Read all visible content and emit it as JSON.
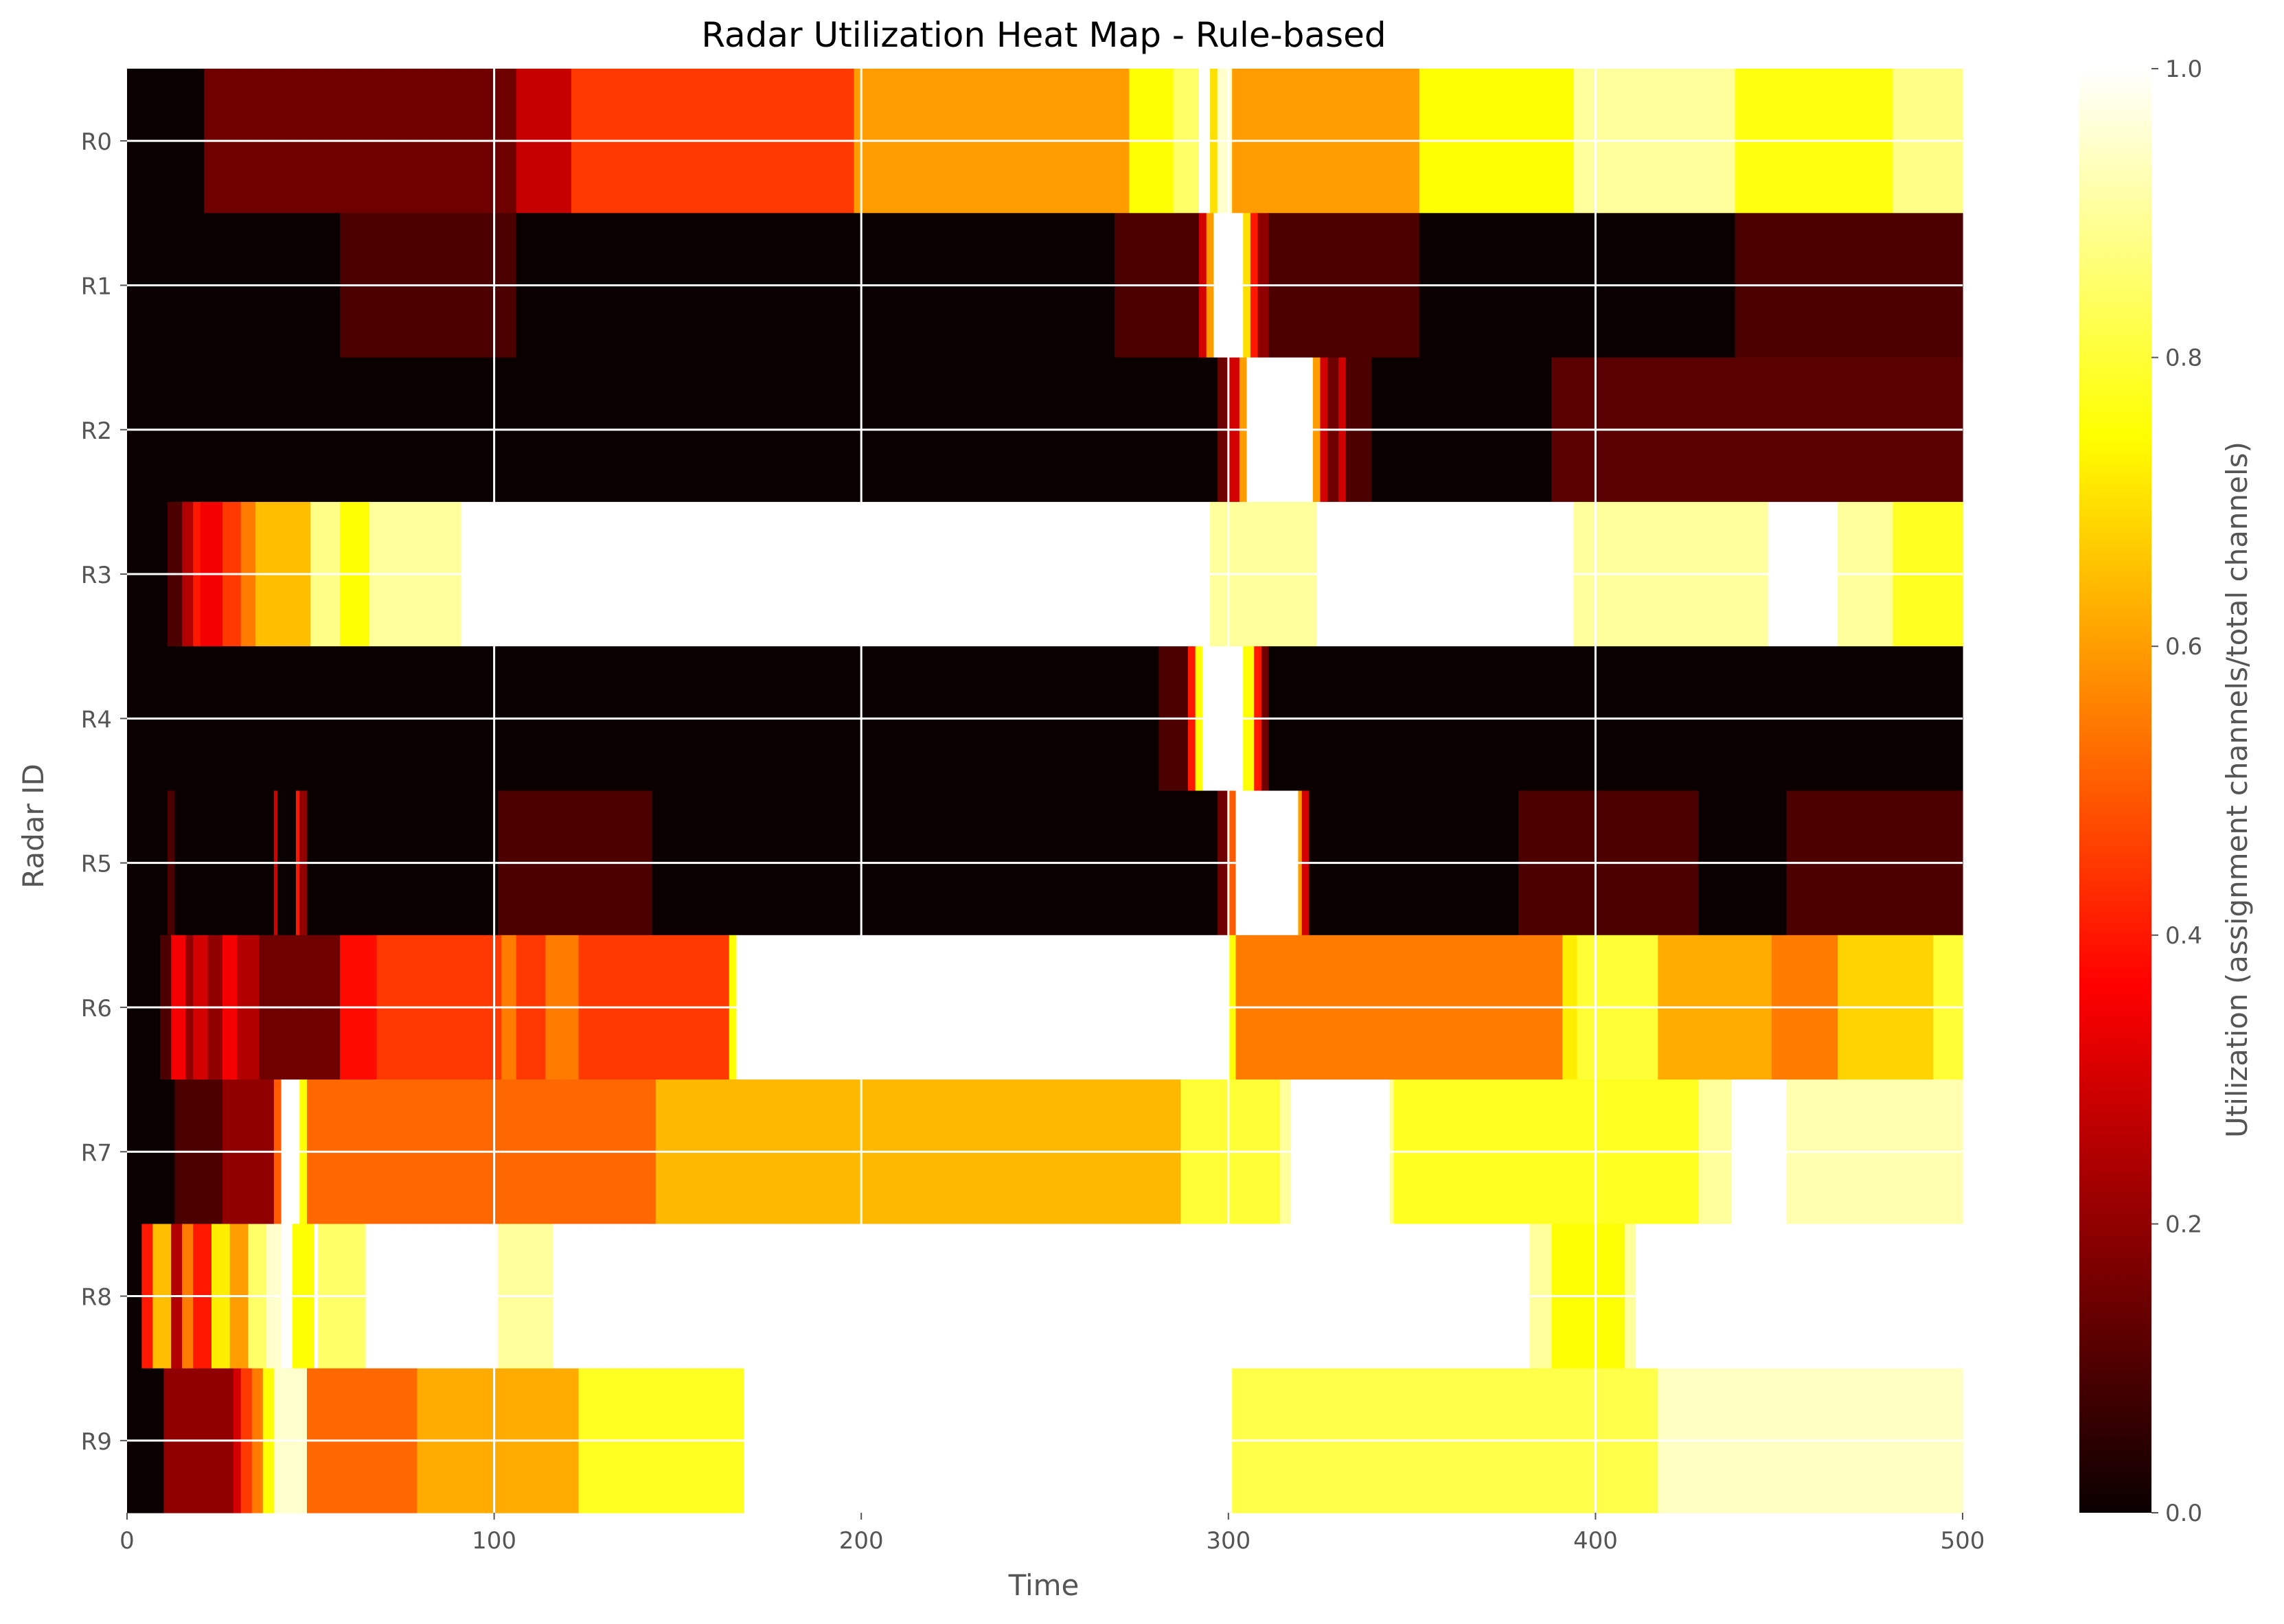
{
  "chart_data": {
    "type": "heatmap",
    "title": "Radar Utilization Heat Map - Rule-based",
    "xlabel": "Time",
    "ylabel": "Radar ID",
    "colorbar_label": "Utilization (assignment channels/total channels)",
    "xlim": [
      0,
      500
    ],
    "x_ticks": [
      0,
      100,
      200,
      300,
      400,
      500
    ],
    "colorbar_range": [
      0,
      1
    ],
    "colorbar_ticks": [
      "0.0",
      "0.2",
      "0.4",
      "0.6",
      "0.8",
      "1.0"
    ],
    "colormap": "hot",
    "grid": true,
    "rows": [
      {
        "label": "R0",
        "segments": [
          [
            0,
            21,
            0.0
          ],
          [
            21,
            106,
            0.15
          ],
          [
            106,
            121,
            0.28
          ],
          [
            121,
            198,
            0.45
          ],
          [
            198,
            273,
            0.6
          ],
          [
            273,
            285,
            0.75
          ],
          [
            285,
            292,
            0.85
          ],
          [
            292,
            295,
            1.0
          ],
          [
            295,
            297,
            0.7
          ],
          [
            297,
            301,
            0.95
          ],
          [
            301,
            352,
            0.6
          ],
          [
            352,
            394,
            0.75
          ],
          [
            394,
            438,
            0.9
          ],
          [
            438,
            481,
            0.76
          ],
          [
            481,
            500,
            0.88
          ]
        ]
      },
      {
        "label": "R1",
        "segments": [
          [
            0,
            58,
            0.0
          ],
          [
            58,
            106,
            0.1
          ],
          [
            106,
            269,
            0.0
          ],
          [
            269,
            292,
            0.1
          ],
          [
            292,
            294,
            0.3
          ],
          [
            294,
            296,
            0.6
          ],
          [
            296,
            298,
            1.0
          ],
          [
            298,
            304,
            1.0
          ],
          [
            304,
            306,
            0.7
          ],
          [
            306,
            308,
            0.4
          ],
          [
            308,
            311,
            0.2
          ],
          [
            311,
            352,
            0.1
          ],
          [
            352,
            438,
            0.0
          ],
          [
            438,
            500,
            0.1
          ]
        ]
      },
      {
        "label": "R2",
        "segments": [
          [
            0,
            297,
            0.0
          ],
          [
            297,
            300,
            0.15
          ],
          [
            300,
            303,
            0.3
          ],
          [
            303,
            305,
            0.6
          ],
          [
            305,
            323,
            1.0
          ],
          [
            323,
            325,
            0.6
          ],
          [
            325,
            327,
            0.3
          ],
          [
            327,
            330,
            0.15
          ],
          [
            330,
            332,
            0.3
          ],
          [
            332,
            339,
            0.1
          ],
          [
            339,
            388,
            0.0
          ],
          [
            388,
            500,
            0.12
          ]
        ]
      },
      {
        "label": "R3",
        "segments": [
          [
            0,
            11,
            0.0
          ],
          [
            11,
            15,
            0.1
          ],
          [
            15,
            18,
            0.25
          ],
          [
            18,
            20,
            0.4
          ],
          [
            20,
            26,
            0.35
          ],
          [
            26,
            31,
            0.45
          ],
          [
            31,
            35,
            0.55
          ],
          [
            35,
            50,
            0.65
          ],
          [
            50,
            58,
            0.88
          ],
          [
            58,
            66,
            0.75
          ],
          [
            66,
            91,
            0.9
          ],
          [
            91,
            295,
            1.0
          ],
          [
            295,
            324,
            0.9
          ],
          [
            324,
            394,
            1.0
          ],
          [
            394,
            447,
            0.9
          ],
          [
            447,
            466,
            1.0
          ],
          [
            466,
            481,
            0.9
          ],
          [
            481,
            500,
            0.78
          ]
        ]
      },
      {
        "label": "R4",
        "segments": [
          [
            0,
            281,
            0.0
          ],
          [
            281,
            289,
            0.1
          ],
          [
            289,
            291,
            0.4
          ],
          [
            291,
            293,
            0.75
          ],
          [
            293,
            304,
            1.0
          ],
          [
            304,
            307,
            0.75
          ],
          [
            307,
            309,
            0.4
          ],
          [
            309,
            311,
            0.15
          ],
          [
            311,
            500,
            0.0
          ]
        ]
      },
      {
        "label": "R5",
        "segments": [
          [
            0,
            11,
            0.0
          ],
          [
            11,
            13,
            0.1
          ],
          [
            13,
            40,
            0.0
          ],
          [
            40,
            41,
            0.3
          ],
          [
            41,
            46,
            0.0
          ],
          [
            46,
            47,
            0.4
          ],
          [
            47,
            49,
            0.2
          ],
          [
            49,
            101,
            0.0
          ],
          [
            101,
            143,
            0.1
          ],
          [
            143,
            297,
            0.0
          ],
          [
            297,
            300,
            0.15
          ],
          [
            300,
            302,
            0.5
          ],
          [
            302,
            319,
            1.0
          ],
          [
            319,
            320,
            0.6
          ],
          [
            320,
            322,
            0.3
          ],
          [
            322,
            379,
            0.0
          ],
          [
            379,
            428,
            0.1
          ],
          [
            428,
            452,
            0.0
          ],
          [
            452,
            500,
            0.1
          ]
        ]
      },
      {
        "label": "R6",
        "segments": [
          [
            0,
            9,
            0.0
          ],
          [
            9,
            12,
            0.1
          ],
          [
            12,
            16,
            0.35
          ],
          [
            16,
            18,
            0.2
          ],
          [
            18,
            22,
            0.3
          ],
          [
            22,
            26,
            0.2
          ],
          [
            26,
            30,
            0.35
          ],
          [
            30,
            36,
            0.25
          ],
          [
            36,
            58,
            0.15
          ],
          [
            58,
            68,
            0.38
          ],
          [
            68,
            102,
            0.45
          ],
          [
            102,
            106,
            0.55
          ],
          [
            106,
            114,
            0.45
          ],
          [
            114,
            123,
            0.55
          ],
          [
            123,
            164,
            0.45
          ],
          [
            164,
            166,
            0.75
          ],
          [
            166,
            300,
            1.0
          ],
          [
            300,
            302,
            0.75
          ],
          [
            302,
            305,
            0.55
          ],
          [
            305,
            391,
            0.55
          ],
          [
            391,
            395,
            0.72
          ],
          [
            395,
            417,
            0.8
          ],
          [
            417,
            448,
            0.62
          ],
          [
            448,
            466,
            0.55
          ],
          [
            466,
            492,
            0.68
          ],
          [
            492,
            500,
            0.8
          ]
        ]
      },
      {
        "label": "R7",
        "segments": [
          [
            0,
            13,
            0.0
          ],
          [
            13,
            26,
            0.1
          ],
          [
            26,
            40,
            0.2
          ],
          [
            40,
            42,
            0.5
          ],
          [
            42,
            47,
            1.0
          ],
          [
            47,
            49,
            0.75
          ],
          [
            49,
            144,
            0.52
          ],
          [
            144,
            287,
            0.64
          ],
          [
            287,
            314,
            0.8
          ],
          [
            314,
            317,
            0.9
          ],
          [
            317,
            344,
            1.0
          ],
          [
            344,
            345,
            0.9
          ],
          [
            345,
            428,
            0.78
          ],
          [
            428,
            437,
            0.9
          ],
          [
            437,
            452,
            1.0
          ],
          [
            452,
            500,
            0.92
          ]
        ]
      },
      {
        "label": "R8",
        "segments": [
          [
            0,
            4,
            0.0
          ],
          [
            4,
            7,
            0.4
          ],
          [
            7,
            12,
            0.65
          ],
          [
            12,
            15,
            0.25
          ],
          [
            15,
            18,
            0.55
          ],
          [
            18,
            23,
            0.4
          ],
          [
            23,
            28,
            0.72
          ],
          [
            28,
            33,
            0.6
          ],
          [
            33,
            38,
            0.85
          ],
          [
            38,
            42,
            0.95
          ],
          [
            42,
            45,
            1.0
          ],
          [
            45,
            51,
            0.75
          ],
          [
            51,
            52,
            1.0
          ],
          [
            52,
            65,
            0.85
          ],
          [
            65,
            101,
            1.0
          ],
          [
            101,
            116,
            0.9
          ],
          [
            116,
            382,
            1.0
          ],
          [
            382,
            388,
            0.9
          ],
          [
            388,
            408,
            0.75
          ],
          [
            408,
            411,
            0.9
          ],
          [
            411,
            500,
            1.0
          ]
        ]
      },
      {
        "label": "R9",
        "segments": [
          [
            0,
            10,
            0.0
          ],
          [
            10,
            29,
            0.2
          ],
          [
            29,
            31,
            0.3
          ],
          [
            31,
            34,
            0.45
          ],
          [
            34,
            37,
            0.55
          ],
          [
            37,
            40,
            0.75
          ],
          [
            40,
            49,
            0.95
          ],
          [
            49,
            79,
            0.52
          ],
          [
            79,
            123,
            0.62
          ],
          [
            123,
            168,
            0.78
          ],
          [
            168,
            301,
            1.0
          ],
          [
            301,
            417,
            0.82
          ],
          [
            417,
            500,
            0.94
          ]
        ]
      }
    ]
  }
}
